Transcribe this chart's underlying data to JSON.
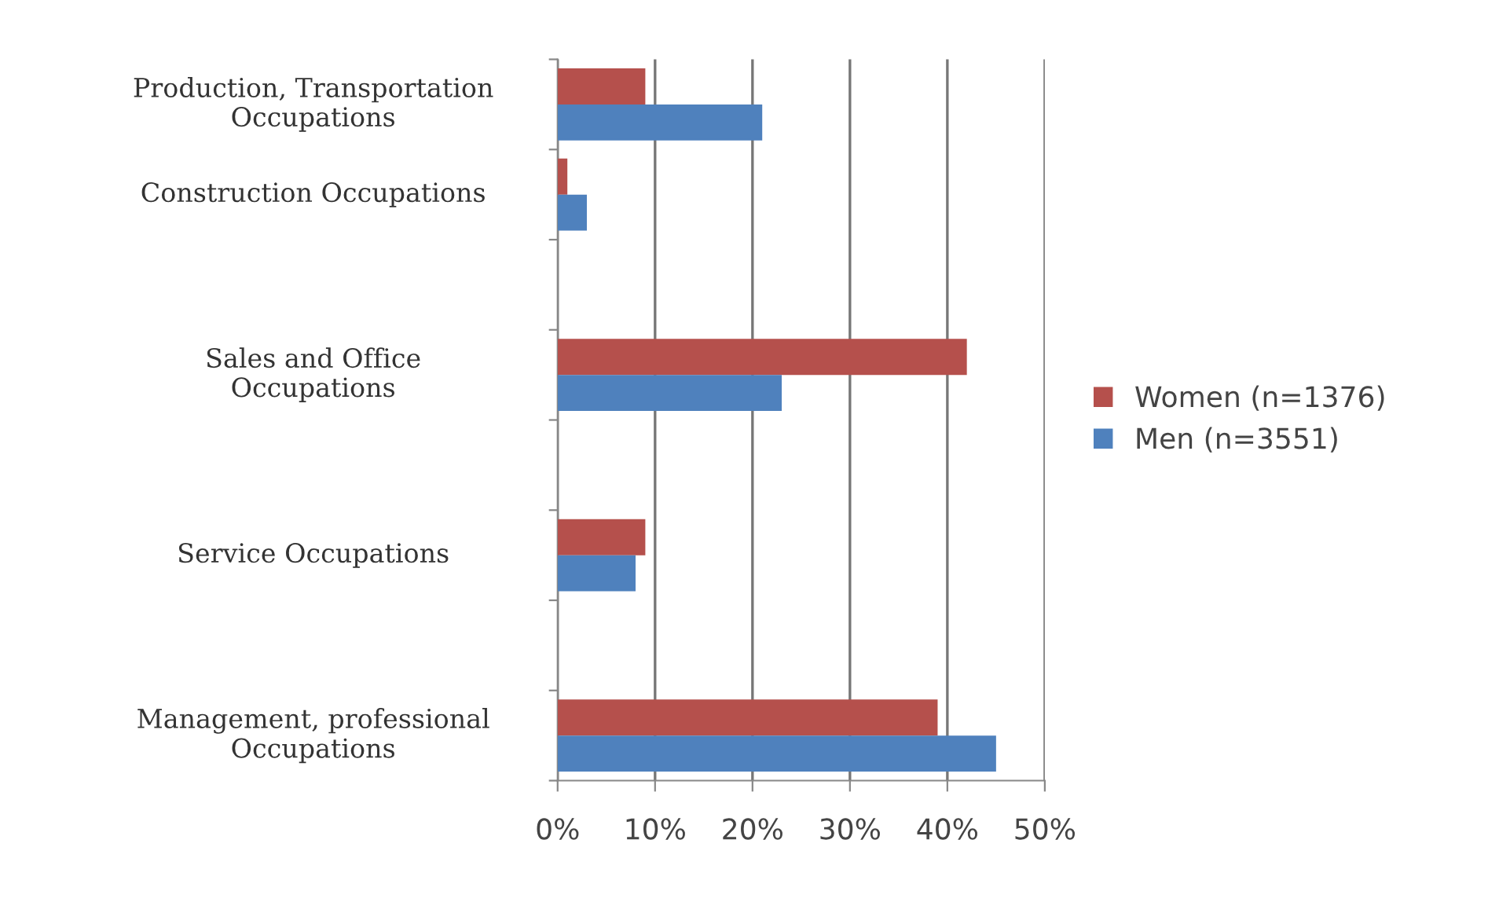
{
  "chart_data": {
    "type": "bar",
    "orientation": "horizontal",
    "categories": [
      "Production, Transportation\nOccupations",
      "Construction Occupations",
      null,
      "Sales and Office\nOccupations",
      null,
      "Service Occupations",
      null,
      "Management, professional\nOccupations"
    ],
    "series": [
      {
        "name": "Women (n=1376)",
        "color": "#b5504c",
        "values": [
          9,
          1,
          null,
          42,
          null,
          9,
          null,
          39
        ]
      },
      {
        "name": "Men (n=3551)",
        "color": "#4f81bd",
        "values": [
          21,
          3,
          null,
          23,
          null,
          8,
          null,
          45
        ]
      }
    ],
    "xlim": [
      0,
      50
    ],
    "xticks": [
      {
        "value": 0,
        "label": "0%"
      },
      {
        "value": 10,
        "label": "10%"
      },
      {
        "value": 20,
        "label": "20%"
      },
      {
        "value": 30,
        "label": "30%"
      },
      {
        "value": 40,
        "label": "40%"
      },
      {
        "value": 50,
        "label": "50%"
      }
    ],
    "grid": "x",
    "legend": "right"
  }
}
